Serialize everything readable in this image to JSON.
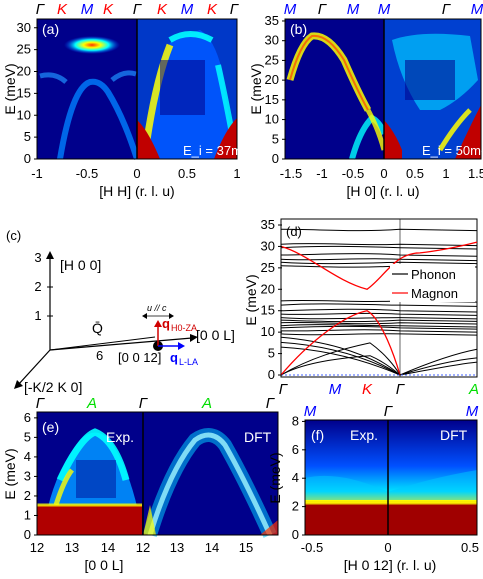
{
  "colors": {
    "gamma": "#000000",
    "K": "#ff0000",
    "M": "#0000ff",
    "A": "#00dd00",
    "phonon": "#000000",
    "magnon": "#ff0000",
    "bg": "#00008b"
  },
  "panel_a": {
    "label": "(a)",
    "ylabel": "E (meV)",
    "xlabel": "[H H] (r. l. u)",
    "yticks": [
      "0",
      "5",
      "10",
      "15",
      "20",
      "25",
      "30"
    ],
    "xticks": [
      "-1",
      "-0.5",
      "0",
      "0.5",
      "1"
    ],
    "top_labels": [
      "Γ",
      "K",
      "M",
      "K",
      "Γ",
      "K",
      "M",
      "K",
      "Γ"
    ],
    "inset": "E_i = 37meV"
  },
  "panel_b": {
    "label": "(b)",
    "ylabel": "E (meV)",
    "xlabel": "[H 0] (r. l. u)",
    "yticks": [
      "0",
      "5",
      "10",
      "15",
      "20",
      "25",
      "30",
      "35"
    ],
    "xticks": [
      "-1.5",
      "-1",
      "-0.5",
      "0",
      "0.5",
      "1",
      "1.5"
    ],
    "top_labels": [
      "M",
      "Γ",
      "M",
      "M",
      "Γ",
      "M"
    ],
    "inset": "E_i = 50meV"
  },
  "panel_c": {
    "label": "(c)",
    "axis_h": "[H 0 0]",
    "axis_l": "[0 0 L]",
    "axis_k": "[-K/2 K 0]",
    "ticks": [
      "1",
      "2",
      "3"
    ],
    "q_bar": "Q̄",
    "six": "6",
    "origin": "[0 0 12]",
    "q_h0za": "q",
    "q_h0za_sub": "H0-ZA",
    "q_lla": "q",
    "q_lla_sub": "L-LA",
    "u_c": "u // c"
  },
  "panel_d": {
    "label": "(d)",
    "ylabel": "E (meV)",
    "yticks": [
      "0",
      "5",
      "10",
      "15",
      "20",
      "25",
      "30",
      "35"
    ],
    "bottom_labels": [
      "Γ",
      "M",
      "K",
      "Γ",
      "A"
    ],
    "legend": [
      "Phonon",
      "Magnon"
    ]
  },
  "panel_e": {
    "label": "(e)",
    "ylabel": "E (meV)",
    "xlabel": "[0 0 L]",
    "yticks": [
      "0",
      "1",
      "2",
      "3",
      "4",
      "5",
      "6"
    ],
    "xticks": [
      "12",
      "13",
      "14",
      "12",
      "13",
      "14",
      "15"
    ],
    "top_labels": [
      "Γ",
      "A",
      "Γ",
      "A",
      "Γ"
    ],
    "exp": "Exp.",
    "dft": "DFT"
  },
  "panel_f": {
    "label": "(f)",
    "ylabel": "E (meV)",
    "xlabel": "[H 0 12] (r. l. u)",
    "yticks": [
      "0",
      "2",
      "4",
      "6",
      "8"
    ],
    "xticks": [
      "-0.5",
      "0",
      "0.5"
    ],
    "top_labels": [
      "M",
      "Γ",
      "M"
    ],
    "exp": "Exp.",
    "dft": "DFT"
  }
}
